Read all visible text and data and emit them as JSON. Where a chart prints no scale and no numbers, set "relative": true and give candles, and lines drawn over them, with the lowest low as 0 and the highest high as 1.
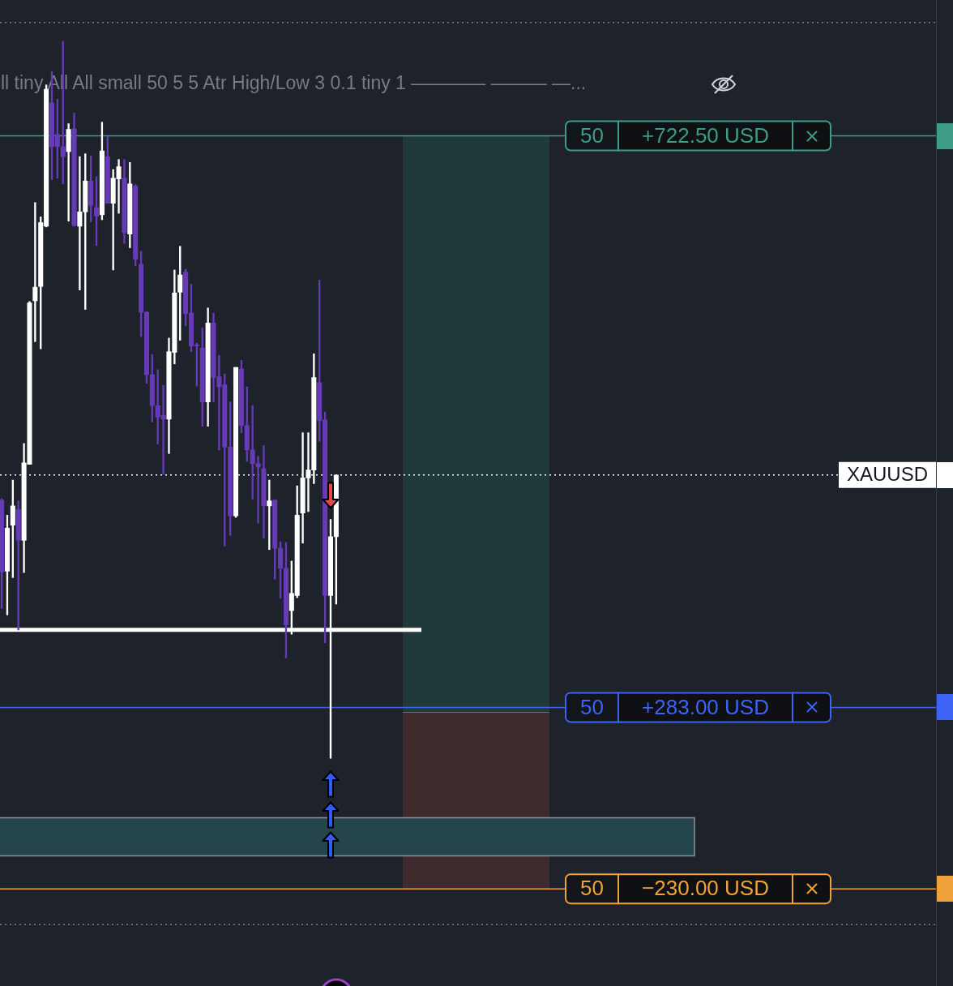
{
  "chart_data": {
    "type": "candlestick",
    "title": "ll tiny All All small 50 5 5 Atr High/Low 3 0.1 tiny 1 ———— ——— —...",
    "relative": true,
    "categories": [
      null,
      null,
      null,
      null,
      null,
      null,
      null,
      null,
      null,
      null,
      null,
      null,
      null,
      null,
      null,
      null,
      null,
      null,
      null,
      null,
      null,
      null,
      null,
      null,
      null,
      null,
      null,
      null,
      null,
      null,
      null,
      null,
      null,
      null,
      null,
      null,
      null,
      null,
      null,
      null,
      null,
      null,
      null,
      null,
      null,
      null,
      null,
      null,
      null,
      null,
      null,
      null,
      null,
      null,
      null,
      null,
      null,
      null,
      null,
      null,
      null
    ],
    "ohlc": [
      [
        0.36,
        0.362,
        0.209,
        0.26
      ],
      [
        0.261,
        0.339,
        0.2,
        0.321
      ],
      [
        0.325,
        0.388,
        0.252,
        0.352
      ],
      [
        0.347,
        0.359,
        0.179,
        0.304
      ],
      [
        0.304,
        0.439,
        0.259,
        0.412
      ],
      [
        0.41,
        0.637,
        0.41,
        0.635
      ],
      [
        0.638,
        0.775,
        0.581,
        0.657
      ],
      [
        0.658,
        0.755,
        0.571,
        0.747
      ],
      [
        0.742,
        0.939,
        0.741,
        0.933
      ],
      [
        0.914,
        0.958,
        0.807,
        0.853
      ],
      [
        0.87,
        0.919,
        0.809,
        0.853
      ],
      [
        0.853,
        1.0,
        0.801,
        0.839
      ],
      [
        0.846,
        0.885,
        0.749,
        0.877
      ],
      [
        0.878,
        0.9,
        0.742,
        0.743
      ],
      [
        0.742,
        0.839,
        0.653,
        0.762
      ],
      [
        0.762,
        0.843,
        0.626,
        0.805
      ],
      [
        0.805,
        0.84,
        0.748,
        0.771
      ],
      [
        0.768,
        0.811,
        0.715,
        0.756
      ],
      [
        0.758,
        0.887,
        0.751,
        0.847
      ],
      [
        0.839,
        0.867,
        0.774,
        0.774
      ],
      [
        0.774,
        0.821,
        0.681,
        0.809
      ],
      [
        0.808,
        0.835,
        0.76,
        0.825
      ],
      [
        0.809,
        0.835,
        0.718,
        0.733
      ],
      [
        0.731,
        0.831,
        0.712,
        0.801
      ],
      [
        0.798,
        0.8,
        0.687,
        0.696
      ],
      [
        0.689,
        0.707,
        0.588,
        0.622
      ],
      [
        0.622,
        0.623,
        0.523,
        0.535
      ],
      [
        0.535,
        0.563,
        0.469,
        0.492
      ],
      [
        0.492,
        0.542,
        0.438,
        0.476
      ],
      [
        0.478,
        0.52,
        0.396,
        0.473
      ],
      [
        0.473,
        0.586,
        0.425,
        0.567
      ],
      [
        0.566,
        0.681,
        0.55,
        0.649
      ],
      [
        0.65,
        0.714,
        0.583,
        0.674
      ],
      [
        0.678,
        0.682,
        0.603,
        0.62
      ],
      [
        0.621,
        0.661,
        0.567,
        0.575
      ],
      [
        0.576,
        0.579,
        0.519,
        0.575
      ],
      [
        0.572,
        0.6,
        0.463,
        0.497
      ],
      [
        0.497,
        0.628,
        0.463,
        0.607
      ],
      [
        0.607,
        0.621,
        0.497,
        0.531
      ],
      [
        0.532,
        0.562,
        0.43,
        0.518
      ],
      [
        0.521,
        0.536,
        0.296,
        0.434
      ],
      [
        0.434,
        0.497,
        0.311,
        0.338
      ],
      [
        0.338,
        0.545,
        0.336,
        0.545
      ],
      [
        0.543,
        0.555,
        0.454,
        0.464
      ],
      [
        0.464,
        0.518,
        0.414,
        0.43
      ],
      [
        0.43,
        0.492,
        0.361,
        0.411
      ],
      [
        0.411,
        0.421,
        0.328,
        0.406
      ],
      [
        0.404,
        0.436,
        0.307,
        0.352
      ],
      [
        0.352,
        0.388,
        0.291,
        0.359
      ],
      [
        0.36,
        0.36,
        0.25,
        0.293
      ],
      [
        0.293,
        0.302,
        0.223,
        0.265
      ],
      [
        0.265,
        0.301,
        0.14,
        0.186
      ],
      [
        0.206,
        0.275,
        0.173,
        0.23
      ],
      [
        0.227,
        0.38,
        0.224,
        0.339
      ],
      [
        0.342,
        0.454,
        0.3,
        0.391
      ],
      [
        0.391,
        0.454,
        0.344,
        0.402
      ],
      [
        0.402,
        0.564,
        0.383,
        0.531
      ],
      [
        0.524,
        0.667,
        0.442,
        0.471
      ],
      [
        0.472,
        0.483,
        0.161,
        0.227
      ],
      [
        0.227,
        0.333,
        0.0,
        0.309
      ],
      [
        0.309,
        0.395,
        0.215,
        0.395
      ]
    ],
    "colors": [
      "#673ab7",
      "#ffffff",
      "#ffffff",
      "#673ab7",
      "#ffffff",
      "#ffffff",
      "#ffffff",
      "#ffffff",
      "#ffffff",
      "#673ab7",
      "#673ab7",
      "#673ab7",
      "#ffffff",
      "#673ab7",
      "#ffffff",
      "#ffffff",
      "#673ab7",
      "#673ab7",
      "#ffffff",
      "#673ab7",
      "#ffffff",
      "#ffffff",
      "#673ab7",
      "#ffffff",
      "#673ab7",
      "#673ab7",
      "#673ab7",
      "#673ab7",
      "#673ab7",
      "#673ab7",
      "#ffffff",
      "#ffffff",
      "#ffffff",
      "#673ab7",
      "#673ab7",
      "#673ab7",
      "#673ab7",
      "#ffffff",
      "#673ab7",
      "#673ab7",
      "#673ab7",
      "#673ab7",
      "#ffffff",
      "#673ab7",
      "#673ab7",
      "#673ab7",
      "#673ab7",
      "#673ab7",
      "#ffffff",
      "#673ab7",
      "#673ab7",
      "#673ab7",
      "#ffffff",
      "#ffffff",
      "#ffffff",
      "#ffffff",
      "#ffffff",
      "#673ab7",
      "#673ab7",
      "#ffffff",
      "#ffffff"
    ],
    "ref_lines": [
      {
        "axis": "y",
        "value": 1.026,
        "color": "#787b86",
        "line_style": "dotted"
      },
      {
        "axis": "y",
        "value": 0.868,
        "label": "+722.50 USD",
        "color": "#3d9c85"
      },
      {
        "axis": "y",
        "value": 0.395,
        "label": "XAUUSD",
        "color": "#ffffff",
        "line_style": "dotted"
      },
      {
        "axis": "y",
        "value": 0.179,
        "color": "#ffffff"
      },
      {
        "axis": "y",
        "value": 0.071,
        "label": "+283.00 USD",
        "color": "#3d63f5"
      },
      {
        "axis": "y",
        "value": -0.182,
        "label": "−230.00 USD",
        "color": "#f0a23a"
      },
      {
        "axis": "y",
        "value": -0.232,
        "color": "#787b86",
        "line_style": "dotted"
      }
    ],
    "bands": [
      {
        "axis": "y",
        "from": -0.136,
        "to": -0.083,
        "color": "#24454b"
      }
    ],
    "annotations": [
      {
        "text": "50",
        "y": 0.868
      },
      {
        "text": "50",
        "y": 0.071
      },
      {
        "text": "50",
        "y": -0.182
      }
    ]
  }
}
